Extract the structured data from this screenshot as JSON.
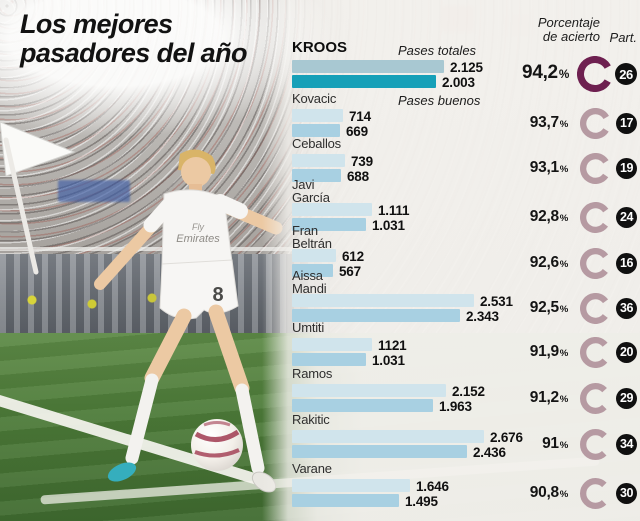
{
  "title": {
    "line1": "Los mejores",
    "line2": "pasadores del año"
  },
  "header": {
    "col_accuracy_line1": "Porcentaje",
    "col_accuracy_line2": "de acierto",
    "col_part": "Part."
  },
  "photo": {
    "jersey_sponsor_line1": "Fly",
    "jersey_sponsor_line2": "Emirates",
    "shirt_number": "8"
  },
  "colors": {
    "bar_total": "#d0e4ec",
    "bar_good": "#a8d0e2",
    "bar_highlight_total": "#a8c8d2",
    "bar_highlight_good": "#16a0b8",
    "donut": "#b69aa2",
    "donut_highlight": "#6e2050",
    "badge_bg": "#101010"
  },
  "chart_data": {
    "type": "bar",
    "orientation": "horizontal",
    "title": "Los mejores pasadores del año",
    "xlabel": "",
    "ylabel": "",
    "xlim": [
      0,
      2676
    ],
    "grid": false,
    "legend_position": "inline-top",
    "highlight_index": 0,
    "categories": [
      "KROOS",
      "Kovacic",
      "Ceballos",
      "Javi García",
      "Fran Beltrán",
      "Aissa Mandi",
      "Umtiti",
      "Ramos",
      "Rakitic",
      "Varane"
    ],
    "series": [
      {
        "name": "Pases totales",
        "values": [
          2125,
          714,
          739,
          1111,
          612,
          2531,
          1121,
          2152,
          2676,
          1646
        ],
        "display": [
          "2.125",
          "714",
          "739",
          "1.111",
          "612",
          "2.531",
          "1121",
          "2.152",
          "2.676",
          "1.646"
        ]
      },
      {
        "name": "Pases buenos",
        "values": [
          2003,
          669,
          688,
          1031,
          567,
          2343,
          1031,
          1963,
          2436,
          1495
        ],
        "display": [
          "2.003",
          "669",
          "688",
          "1.031",
          "567",
          "2.343",
          "1.031",
          "1.963",
          "2.436",
          "1.495"
        ]
      }
    ],
    "accuracy_pct": [
      94.2,
      93.7,
      93.1,
      92.8,
      92.6,
      92.5,
      91.9,
      91.2,
      91,
      90.8
    ],
    "accuracy_display": [
      "94,2",
      "93,7",
      "93,1",
      "92,8",
      "92,6",
      "92,5",
      "91,9",
      "91,2",
      "91",
      "90,8"
    ],
    "matches": [
      26,
      17,
      19,
      24,
      16,
      36,
      20,
      29,
      34,
      30
    ]
  }
}
